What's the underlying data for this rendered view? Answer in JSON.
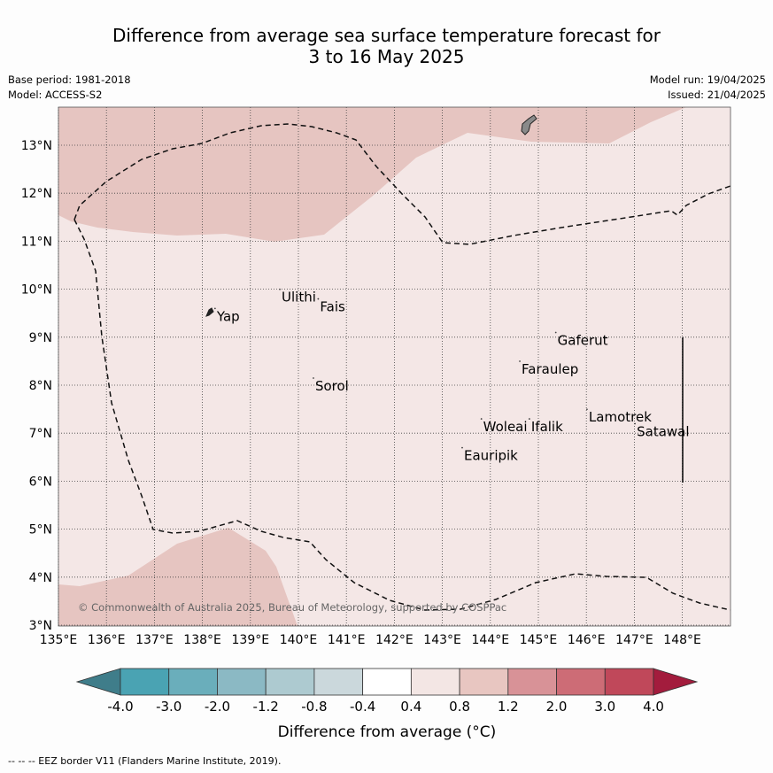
{
  "title": {
    "line1": "Difference from average sea surface temperature forecast for",
    "line2": "3 to 16 May 2025"
  },
  "meta": {
    "base_period": "Base period: 1981-2018",
    "model": "Model: ACCESS-S2",
    "model_run": "Model run: 19/04/2025",
    "issued": "Issued: 21/04/2025"
  },
  "axes": {
    "lon_labels": [
      "135°E",
      "136°E",
      "137°E",
      "138°E",
      "139°E",
      "140°E",
      "141°E",
      "142°E",
      "143°E",
      "144°E",
      "145°E",
      "146°E",
      "147°E",
      "148°E"
    ],
    "lat_labels": [
      "3°N",
      "4°N",
      "5°N",
      "6°N",
      "7°N",
      "8°N",
      "9°N",
      "10°N",
      "11°N",
      "12°N",
      "13°N"
    ]
  },
  "places": [
    {
      "name": "Yap",
      "lon": 138.3,
      "lat": 9.45
    },
    {
      "name": "Ulithi",
      "lon": 139.65,
      "lat": 9.85
    },
    {
      "name": "Fais",
      "lon": 140.45,
      "lat": 9.65
    },
    {
      "name": "Gaferut",
      "lon": 145.4,
      "lat": 8.95
    },
    {
      "name": "Faraulep",
      "lon": 144.65,
      "lat": 8.35
    },
    {
      "name": "Sorol",
      "lon": 140.35,
      "lat": 8.0
    },
    {
      "name": "Woleai",
      "lon": 143.85,
      "lat": 7.15
    },
    {
      "name": "Ifalik",
      "lon": 144.85,
      "lat": 7.15
    },
    {
      "name": "Lamotrek",
      "lon": 146.05,
      "lat": 7.35
    },
    {
      "name": "Satawal",
      "lon": 147.05,
      "lat": 7.05
    },
    {
      "name": "Eauripik",
      "lon": 143.45,
      "lat": 6.55
    }
  ],
  "copyright": "© Commonwealth of Australia 2025, Bureau of Meteorology, supported by COSPPac",
  "colorbar": {
    "ticks": [
      "-4.0",
      "-3.0",
      "-2.0",
      "-1.2",
      "-0.8",
      "-0.4",
      "0.4",
      "0.8",
      "1.2",
      "2.0",
      "3.0",
      "4.0"
    ],
    "colors": [
      "#3f7d8a",
      "#4aa3b3",
      "#6aaebb",
      "#8bb9c4",
      "#adcad0",
      "#cbd8dc",
      "#ffffff",
      "#f3e6e4",
      "#e8c6c1",
      "#d89297",
      "#cd6c76",
      "#c0485a",
      "#a31c3d"
    ],
    "label": "Difference from average (°C)"
  },
  "footer": "--  --  -- EEZ border V11 (Flanders Marine Institute, 2019)."
}
